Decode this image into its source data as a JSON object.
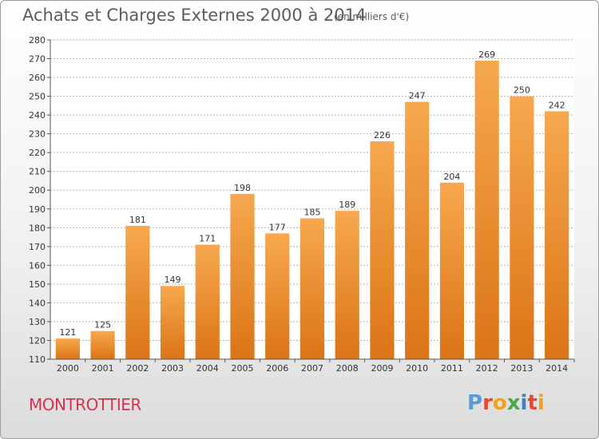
{
  "header": {
    "title": "Achats et Charges Externes 2000 à 2014",
    "subtitle": "(en milliers d'€)"
  },
  "footer": {
    "commune": "MONTROTTIER",
    "logo_text": "Proxiti",
    "logo_colors": [
      "#5a9ad6",
      "#e6482e",
      "#f0a11e",
      "#4aa84a",
      "#3b7fc4",
      "#e6482e",
      "#f0a11e"
    ]
  },
  "colors": {
    "bar_top": "#f7a84e",
    "bar_bottom": "#db7416",
    "grid": "#b4b4b4",
    "axis_text": "#333333"
  },
  "chart_data": {
    "type": "bar",
    "title": "Achats et Charges Externes 2000 à 2014",
    "subtitle": "(en milliers d'€)",
    "xlabel": "",
    "ylabel": "",
    "categories": [
      "2000",
      "2001",
      "2002",
      "2003",
      "2004",
      "2005",
      "2006",
      "2007",
      "2008",
      "2009",
      "2010",
      "2011",
      "2012",
      "2013",
      "2014"
    ],
    "values": [
      121,
      125,
      181,
      149,
      171,
      198,
      177,
      185,
      189,
      226,
      247,
      204,
      269,
      250,
      242
    ],
    "ylim": [
      110,
      280
    ],
    "ytick_step": 10,
    "grid": true
  }
}
